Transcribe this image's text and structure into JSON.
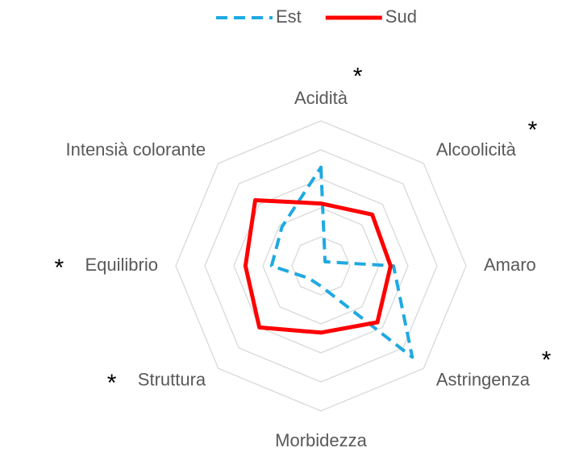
{
  "chart_data": {
    "type": "radar",
    "categories": [
      "Acidità",
      "Alcoolicità",
      "Amaro",
      "Astringenza",
      "Morbidezza",
      "Struttura",
      "Equilibrio",
      "Intensià colorante"
    ],
    "series": [
      {
        "name": "Est",
        "color": "#1fa9e1",
        "dash": true,
        "values": [
          3.4,
          0.2,
          2.5,
          4.45,
          0.7,
          0.6,
          1.7,
          1.9
        ]
      },
      {
        "name": "Sud",
        "color": "#ff0000",
        "dash": false,
        "values": [
          2.15,
          2.5,
          2.4,
          2.75,
          2.3,
          3.0,
          2.6,
          3.2
        ]
      }
    ],
    "rlim": [
      0,
      5
    ],
    "rticks": [
      1,
      2,
      3,
      4,
      5
    ],
    "grid": true,
    "legend": "top",
    "annotations": [
      {
        "text": "*",
        "category": "Acidità"
      },
      {
        "text": "*",
        "category": "Alcoolicità"
      },
      {
        "text": "*",
        "category": "Astringenza"
      },
      {
        "text": "*",
        "category": "Equilibrio"
      },
      {
        "text": "*",
        "category": "Struttura"
      }
    ]
  }
}
